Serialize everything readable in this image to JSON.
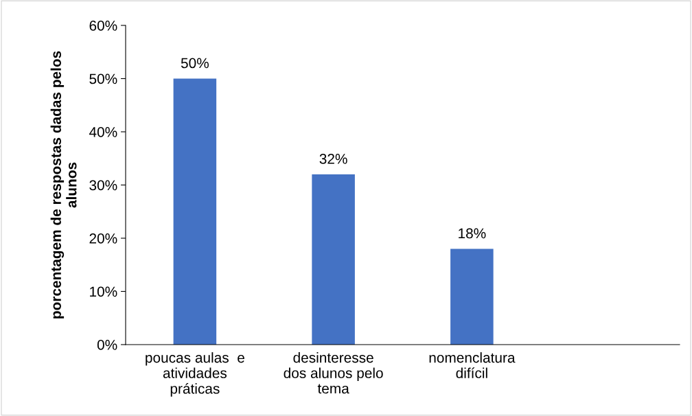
{
  "chart_data": {
    "type": "bar",
    "ylabel": "porcentagem de respostas dadas pelos\nalunos",
    "categories": [
      "poucas aulas  e\natividades\npráticas",
      "desinteresse\ndos alunos pelo\ntema",
      "nomenclatura\ndifícil",
      null
    ],
    "values": [
      50,
      32,
      18,
      null
    ],
    "color": "#4472c4",
    "value_labels": [
      "50%",
      "32%",
      "18%",
      null
    ],
    "ylim": [
      0,
      60
    ],
    "yticks": [
      {
        "value": 0,
        "label": "0%"
      },
      {
        "value": 10,
        "label": "10%"
      },
      {
        "value": 20,
        "label": "20%"
      },
      {
        "value": 30,
        "label": "30%"
      },
      {
        "value": 40,
        "label": "40%"
      },
      {
        "value": 50,
        "label": "50%"
      },
      {
        "value": 60,
        "label": "60%"
      }
    ],
    "grid": false,
    "legend": false
  }
}
